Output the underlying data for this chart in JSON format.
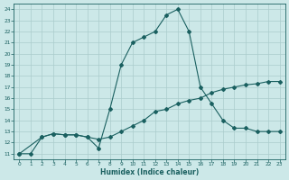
{
  "xlabel": "Humidex (Indice chaleur)",
  "background_color": "#cce8e8",
  "grid_color": "#aacccc",
  "line_color": "#1a6060",
  "xlim": [
    -0.5,
    23.5
  ],
  "ylim": [
    10.5,
    24.5
  ],
  "xticks": [
    0,
    1,
    2,
    3,
    4,
    5,
    6,
    7,
    8,
    9,
    10,
    11,
    12,
    13,
    14,
    15,
    16,
    17,
    18,
    19,
    20,
    21,
    22,
    23
  ],
  "yticks": [
    11,
    12,
    13,
    14,
    15,
    16,
    17,
    18,
    19,
    20,
    21,
    22,
    23,
    24
  ],
  "series1_x": [
    0,
    1,
    2,
    3,
    4,
    5,
    6,
    7,
    8,
    9,
    10,
    11,
    12,
    13,
    14,
    15,
    16,
    17,
    18,
    19,
    20,
    21,
    22,
    23
  ],
  "series1_y": [
    11.0,
    11.0,
    12.5,
    12.8,
    12.7,
    12.7,
    12.5,
    12.3,
    12.5,
    13.0,
    13.5,
    14.0,
    14.8,
    15.0,
    15.5,
    15.8,
    16.0,
    16.5,
    16.8,
    17.0,
    17.2,
    17.3,
    17.5,
    17.5
  ],
  "series2_x": [
    0,
    2,
    3,
    4,
    5,
    6,
    7,
    8,
    9,
    10,
    11,
    12,
    13,
    14,
    15,
    16,
    17,
    18,
    19,
    20,
    21,
    22,
    23
  ],
  "series2_y": [
    11.0,
    12.5,
    12.8,
    12.7,
    12.7,
    12.5,
    11.5,
    15.0,
    19.0,
    21.0,
    21.5,
    22.0,
    23.5,
    24.0,
    22.0,
    17.0,
    15.5,
    14.0,
    13.3,
    13.3,
    13.0,
    13.0,
    13.0
  ],
  "marker": "D",
  "markersize": 2.0,
  "linewidth": 0.8,
  "tick_fontsize": 4.2,
  "xlabel_fontsize": 5.5
}
